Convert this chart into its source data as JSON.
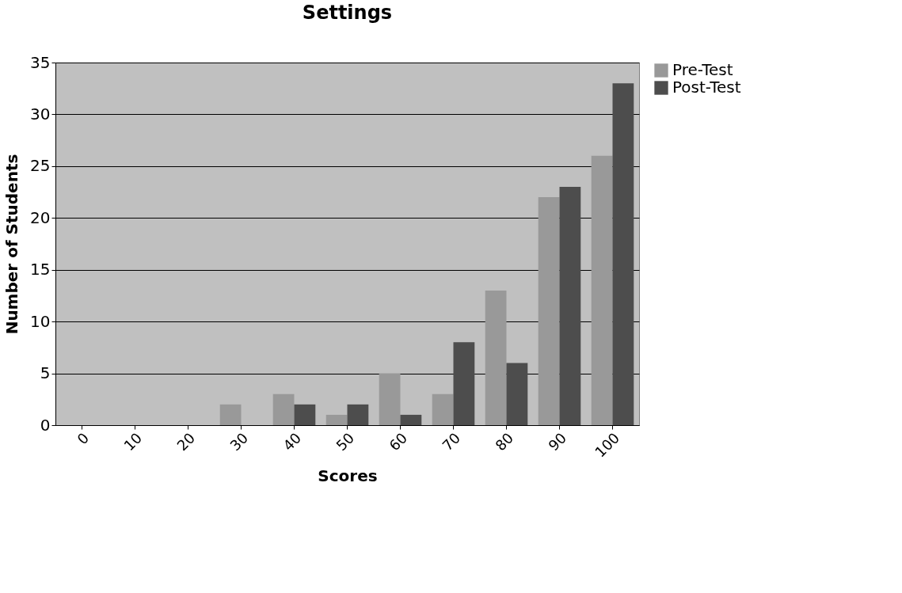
{
  "chart_data": {
    "type": "bar",
    "title": "Settings",
    "xlabel": "Scores",
    "ylabel": "Number of Students",
    "categories": [
      "0",
      "10",
      "20",
      "30",
      "40",
      "50",
      "60",
      "70",
      "80",
      "90",
      "100"
    ],
    "series": [
      {
        "name": "Pre-Test",
        "color": "#999999",
        "values": [
          0,
          0,
          0,
          2,
          3,
          1,
          5,
          3,
          13,
          22,
          26
        ]
      },
      {
        "name": "Post-Test",
        "color": "#4d4d4d",
        "values": [
          0,
          0,
          0,
          0,
          2,
          2,
          1,
          8,
          6,
          23,
          33
        ]
      }
    ],
    "ylim": [
      0,
      35
    ],
    "yticks": [
      0,
      5,
      10,
      15,
      20,
      25,
      30,
      35
    ],
    "grid": "y",
    "legend": "right"
  }
}
